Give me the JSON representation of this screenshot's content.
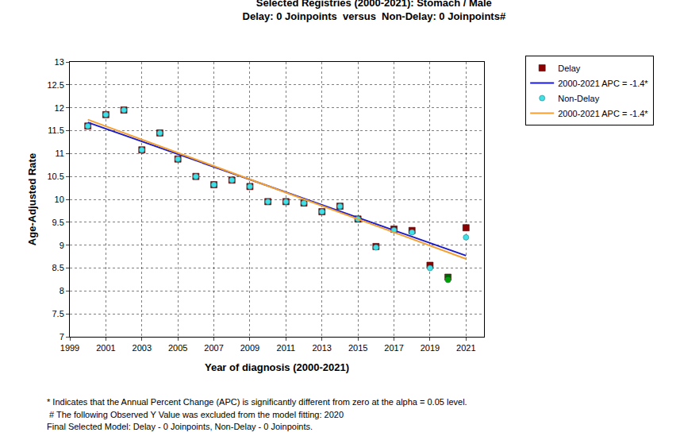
{
  "chart_data": {
    "type": "scatter",
    "title": "Selected Registries (2000-2021): Stomach / Male",
    "subtitle": "Delay: 0 Joinpoints  versus  Non-Delay: 0 Joinpoints#",
    "x_label": "Year of diagnosis (2000-2021)",
    "y_label": "Age-Adjusted Rate",
    "xlim": [
      1999,
      2022
    ],
    "xticks": [
      1999,
      2001,
      2003,
      2005,
      2007,
      2009,
      2011,
      2013,
      2015,
      2017,
      2019,
      2021
    ],
    "ylim": [
      7,
      13
    ],
    "yticks": [
      7,
      7.5,
      8,
      8.5,
      9,
      9.5,
      10,
      10.5,
      11,
      11.5,
      12,
      12.5,
      13
    ],
    "grid": true,
    "legend": "top right",
    "series": [
      {
        "name": "Delay",
        "type": "scatter",
        "marker": "square",
        "color": "#8b0000",
        "x": [
          2000,
          2001,
          2002,
          2003,
          2004,
          2005,
          2006,
          2007,
          2008,
          2009,
          2010,
          2011,
          2012,
          2013,
          2014,
          2015,
          2016,
          2017,
          2018,
          2019,
          2020,
          2021
        ],
        "values": [
          11.6,
          11.85,
          11.95,
          11.08,
          11.45,
          10.88,
          10.5,
          10.32,
          10.42,
          10.28,
          9.95,
          9.95,
          9.92,
          9.73,
          9.85,
          9.57,
          8.97,
          9.35,
          9.32,
          8.56,
          8.3,
          9.38
        ],
        "colors": [
          "#8b0000",
          "#8b0000",
          "#8b0000",
          "#8b0000",
          "#8b0000",
          "#8b0000",
          "#8b0000",
          "#8b0000",
          "#8b0000",
          "#8b0000",
          "#8b0000",
          "#8b0000",
          "#8b0000",
          "#8b0000",
          "#8b0000",
          "#8b0000",
          "#8b0000",
          "#8b0000",
          "#8b0000",
          "#8b0000",
          "#006400",
          "#8b0000"
        ]
      },
      {
        "name": "2000-2021 APC = -1.4*",
        "type": "line",
        "line_style": "solid",
        "color": "#1c1cc8",
        "x": [
          2000,
          2021
        ],
        "values": [
          11.68,
          8.77
        ]
      },
      {
        "name": "Non-Delay",
        "type": "scatter",
        "marker": "circle",
        "color": "#40e0e8",
        "x": [
          2000,
          2001,
          2002,
          2003,
          2004,
          2005,
          2006,
          2007,
          2008,
          2009,
          2010,
          2011,
          2012,
          2013,
          2014,
          2015,
          2016,
          2017,
          2018,
          2019,
          2020,
          2021
        ],
        "values": [
          11.6,
          11.85,
          11.95,
          11.08,
          11.45,
          10.88,
          10.5,
          10.32,
          10.42,
          10.28,
          9.95,
          9.95,
          9.92,
          9.73,
          9.85,
          9.57,
          8.95,
          9.33,
          9.28,
          8.5,
          8.24,
          9.17
        ],
        "colors": [
          "#40e0e8",
          "#40e0e8",
          "#40e0e8",
          "#40e0e8",
          "#40e0e8",
          "#40e0e8",
          "#40e0e8",
          "#40e0e8",
          "#40e0e8",
          "#40e0e8",
          "#40e0e8",
          "#40e0e8",
          "#40e0e8",
          "#40e0e8",
          "#40e0e8",
          "#40e0e8",
          "#40e0e8",
          "#40e0e8",
          "#40e0e8",
          "#40e0e8",
          "#00a000",
          "#40e0e8"
        ]
      },
      {
        "name": "2000-2021 APC = -1.4*",
        "type": "line",
        "line_style": "solid",
        "color": "#f5a030",
        "x": [
          2000,
          2021
        ],
        "values": [
          11.74,
          8.7
        ]
      }
    ],
    "annotations": [
      "* Indicates that the Annual Percent Change (APC) is significantly different from zero at the alpha = 0.05 level.",
      " # The following Observed Y Value was excluded from the model fitting: 2020",
      "Final Selected Model: Delay - 0 Joinpoints, Non-Delay - 0 Joinpoints."
    ]
  }
}
